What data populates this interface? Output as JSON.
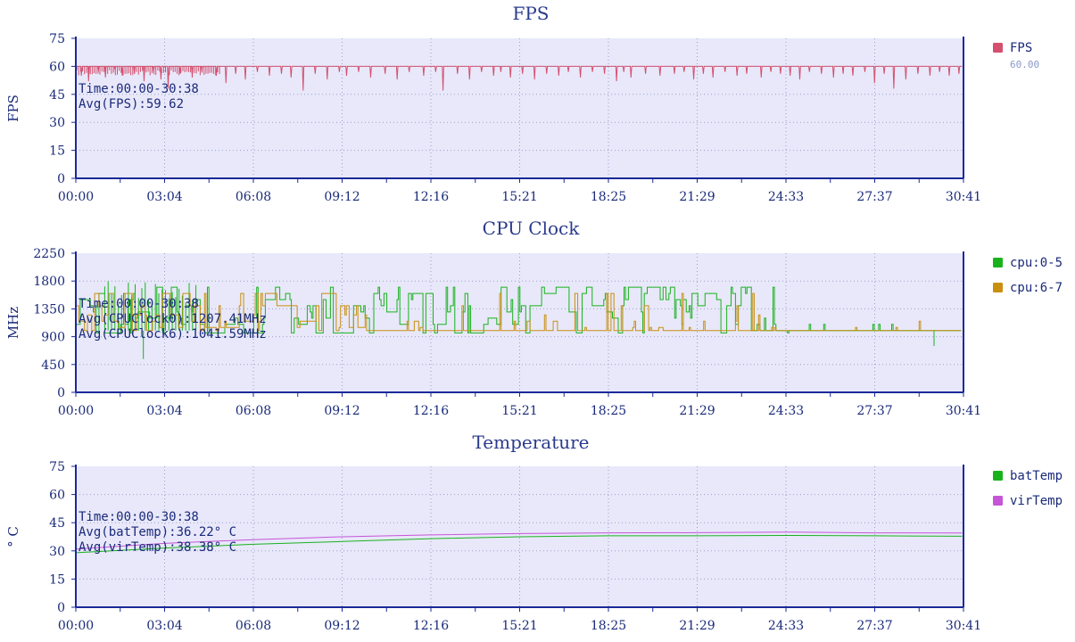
{
  "chart_data": [
    {
      "type": "line",
      "title": "FPS",
      "ylabel": "FPS",
      "ylim": [
        0,
        75
      ],
      "yticks": [
        "0",
        "15",
        "30",
        "45",
        "60",
        "75"
      ],
      "x_ticks": [
        "00:00",
        "03:04",
        "06:08",
        "09:12",
        "12:16",
        "15:21",
        "18:25",
        "21:29",
        "24:33",
        "27:37",
        "30:41"
      ],
      "xlim_seconds": [
        0,
        1841
      ],
      "grid": true,
      "legend_position": "right",
      "annotations": [
        "Time:00:00-30:38",
        "Avg(FPS):59.62"
      ],
      "series": [
        {
          "name": "FPS",
          "legend_value": "60.00",
          "color": "#d4506e",
          "baseline": 60,
          "end_seconds": 1838,
          "dips": [
            [
              10,
              55
            ],
            [
              25,
              52
            ],
            [
              45,
              57
            ],
            [
              60,
              54
            ],
            [
              80,
              58
            ],
            [
              95,
              55
            ],
            [
              120,
              56
            ],
            [
              140,
              52
            ],
            [
              160,
              57
            ],
            [
              175,
              53
            ],
            [
              190,
              48
            ],
            [
              215,
              56
            ],
            [
              240,
              54
            ],
            [
              260,
              57
            ],
            [
              290,
              55
            ],
            [
              310,
              51
            ],
            [
              330,
              56
            ],
            [
              350,
              53
            ],
            [
              375,
              57
            ],
            [
              400,
              55
            ],
            [
              425,
              56
            ],
            [
              445,
              54
            ],
            [
              470,
              47
            ],
            [
              495,
              56
            ],
            [
              520,
              53
            ],
            [
              545,
              57
            ],
            [
              560,
              55
            ],
            [
              585,
              57
            ],
            [
              610,
              54
            ],
            [
              640,
              56
            ],
            [
              665,
              53
            ],
            [
              690,
              57
            ],
            [
              720,
              55
            ],
            [
              745,
              57
            ],
            [
              760,
              47
            ],
            [
              790,
              56
            ],
            [
              815,
              53
            ],
            [
              840,
              57
            ],
            [
              865,
              55
            ],
            [
              880,
              57
            ],
            [
              900,
              54
            ],
            [
              925,
              56
            ],
            [
              950,
              53
            ],
            [
              975,
              56
            ],
            [
              1000,
              55
            ],
            [
              1020,
              57
            ],
            [
              1045,
              54
            ],
            [
              1070,
              57
            ],
            [
              1095,
              56
            ],
            [
              1120,
              52
            ],
            [
              1135,
              57
            ],
            [
              1150,
              54
            ],
            [
              1180,
              56
            ],
            [
              1210,
              55
            ],
            [
              1240,
              56
            ],
            [
              1260,
              57
            ],
            [
              1280,
              53
            ],
            [
              1300,
              56
            ],
            [
              1320,
              54
            ],
            [
              1345,
              57
            ],
            [
              1370,
              55
            ],
            [
              1390,
              56
            ],
            [
              1420,
              54
            ],
            [
              1440,
              57
            ],
            [
              1460,
              56
            ],
            [
              1480,
              55
            ],
            [
              1500,
              53
            ],
            [
              1520,
              57
            ],
            [
              1545,
              56
            ],
            [
              1570,
              54
            ],
            [
              1590,
              56
            ],
            [
              1610,
              55
            ],
            [
              1635,
              57
            ],
            [
              1655,
              51
            ],
            [
              1675,
              56
            ],
            [
              1695,
              48
            ],
            [
              1720,
              53
            ],
            [
              1745,
              56
            ],
            [
              1770,
              55
            ],
            [
              1790,
              57
            ],
            [
              1810,
              55
            ],
            [
              1830,
              56
            ]
          ]
        }
      ]
    },
    {
      "type": "line",
      "title": "CPU Clock",
      "ylabel": "MHz",
      "ylim": [
        0,
        2250
      ],
      "yticks": [
        "0",
        "450",
        "900",
        "1350",
        "1800",
        "2250"
      ],
      "x_ticks": [
        "00:00",
        "03:04",
        "06:08",
        "09:12",
        "12:16",
        "15:21",
        "18:25",
        "21:29",
        "24:33",
        "27:37",
        "30:41"
      ],
      "xlim_seconds": [
        0,
        1841
      ],
      "grid": true,
      "legend_position": "right",
      "annotations": [
        "Time:00:00-30:38",
        "Avg(CPUClock0):1207.41MHz",
        "Avg(CPUClock6):1041.59MHz"
      ],
      "series": [
        {
          "name": "cpu:0-5",
          "color": "#19b21d",
          "seed": 17,
          "levels": [
            960,
            1100,
            1200,
            1300,
            1400,
            1500,
            1600,
            1700
          ],
          "base": 1000
        },
        {
          "name": "cpu:6-7",
          "color": "#c98f10",
          "seed": 29,
          "levels": [
            1000,
            1050,
            1150,
            1250,
            1400,
            1600
          ],
          "base": 1000
        }
      ]
    },
    {
      "type": "line",
      "title": "Temperature",
      "ylabel": "° C",
      "ylim": [
        0,
        75
      ],
      "yticks": [
        "0",
        "15",
        "30",
        "45",
        "60",
        "75"
      ],
      "x_ticks": [
        "00:00",
        "03:04",
        "06:08",
        "09:12",
        "12:16",
        "15:21",
        "18:25",
        "21:29",
        "24:33",
        "27:37",
        "30:41"
      ],
      "xlim_seconds": [
        0,
        1841
      ],
      "grid": true,
      "legend_position": "right",
      "annotations": [
        "Time:00:00-30:38",
        "Avg(batTemp):36.22° C",
        "Avg(virTemp):38.38° C"
      ],
      "series": [
        {
          "name": "batTemp",
          "color": "#19b21d",
          "points": [
            [
              0,
              29
            ],
            [
              184,
              31.5
            ],
            [
              368,
              33.5
            ],
            [
              552,
              35
            ],
            [
              736,
              36.5
            ],
            [
              920,
              37.5
            ],
            [
              1104,
              38
            ],
            [
              1288,
              38
            ],
            [
              1472,
              38.2
            ],
            [
              1656,
              38
            ],
            [
              1838,
              37.8
            ]
          ]
        },
        {
          "name": "virTemp",
          "color": "#c655d8",
          "points": [
            [
              0,
              31
            ],
            [
              184,
              34
            ],
            [
              368,
              36
            ],
            [
              552,
              37.5
            ],
            [
              736,
              38.5
            ],
            [
              920,
              39.2
            ],
            [
              1104,
              39.6
            ],
            [
              1288,
              39.7
            ],
            [
              1472,
              40
            ],
            [
              1656,
              39.6
            ],
            [
              1838,
              39.5
            ]
          ]
        }
      ]
    }
  ]
}
